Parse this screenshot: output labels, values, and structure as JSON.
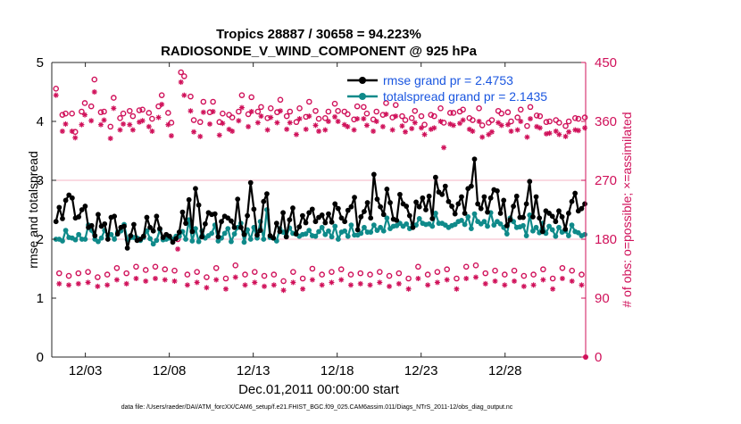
{
  "chart_data": {
    "type": "line",
    "title_line1": "Tropics 28887 / 30658 = 94.223%",
    "title_line2": "RADIOSONDE_V_WIND_COMPONENT @ 925 hPa",
    "xlabel": "Dec.01,2011 00:00:00 start",
    "ylabel_left": "rmse and totalspread",
    "ylabel_right": "# of obs: o=possible; ×=assimilated",
    "footer": "data file: /Users/raeder/DAI/ATM_forcXX/CAM6_setup/f.e21.FHIST_BGC.f09_025.CAM6assim.011/Diags_NTrS_2011-12/obs_diag_output.nc",
    "xlim": [
      1,
      32.8
    ],
    "ylim_left": [
      0,
      5
    ],
    "ylim_right": [
      0,
      450
    ],
    "x_ticks": [
      {
        "label": "12/03",
        "value": 3
      },
      {
        "label": "12/08",
        "value": 8
      },
      {
        "label": "12/13",
        "value": 13
      },
      {
        "label": "12/18",
        "value": 18
      },
      {
        "label": "12/23",
        "value": 23
      },
      {
        "label": "12/28",
        "value": 28
      }
    ],
    "y_ticks_left": [
      "0",
      "1",
      "2",
      "3",
      "4",
      "5"
    ],
    "y_ticks_right": [
      "0",
      "90",
      "180",
      "270",
      "360",
      "450"
    ],
    "legend": [
      {
        "label": "rmse grand pr = 2.4753",
        "color": "#000000"
      },
      {
        "label": "totalspread grand pr = 2.1435",
        "color": "#008b8b"
      }
    ],
    "colors": {
      "rmse": "#000000",
      "totalspread": "#0f8a8a",
      "obs": "#d0115a",
      "axis_right": "#d0115a",
      "legend_text": "#1a56e0",
      "guide_line": "#f4b6c6"
    },
    "series": [
      {
        "name": "rmse",
        "values": [
          2.3,
          2.54,
          2.35,
          2.66,
          2.75,
          2.7,
          2.36,
          2.38,
          2.5,
          2.56,
          2.2,
          2.23,
          2.06,
          2.42,
          2.22,
          2.26,
          2.0,
          2.37,
          2.39,
          2.09,
          2.2,
          2.22,
          1.85,
          2.06,
          2.25,
          1.98,
          2.0,
          2.05,
          2.37,
          2.2,
          2.14,
          2.39,
          2.18,
          2.03,
          2.08,
          2.05,
          1.95,
          2.01,
          2.12,
          2.46,
          2.27,
          2.67,
          2.13,
          2.86,
          2.58,
          2.04,
          2.26,
          2.45,
          2.42,
          2.43,
          2.04,
          2.3,
          2.39,
          2.36,
          2.31,
          2.2,
          2.68,
          2.2,
          2.08,
          2.4,
          2.96,
          2.51,
          2.07,
          2.15,
          2.64,
          2.77,
          2.06,
          2.02,
          2.27,
          2.13,
          2.45,
          2.04,
          2.33,
          2.53,
          2.09,
          2.21,
          2.4,
          2.28,
          2.45,
          2.51,
          2.3,
          2.37,
          2.41,
          2.28,
          2.43,
          2.29,
          2.6,
          2.52,
          2.36,
          2.3,
          2.49,
          2.55,
          2.71,
          2.16,
          2.38,
          2.47,
          2.62,
          2.36,
          3.1,
          2.68,
          2.55,
          2.42,
          2.85,
          2.62,
          2.34,
          2.32,
          2.76,
          2.6,
          2.56,
          2.4,
          2.2,
          2.63,
          2.55,
          2.7,
          2.5,
          2.73,
          2.35,
          3.05,
          2.8,
          2.76,
          2.9,
          2.64,
          2.56,
          2.43,
          2.6,
          2.72,
          2.44,
          2.86,
          2.9,
          3.36,
          2.6,
          2.52,
          2.72,
          2.46,
          2.7,
          2.84,
          2.82,
          2.44,
          2.66,
          2.23,
          2.33,
          2.56,
          2.73,
          2.37,
          2.37,
          2.6,
          2.98,
          2.38,
          2.72,
          2.36,
          2.13,
          2.48,
          2.44,
          2.39,
          2.3,
          2.48,
          2.38,
          2.17,
          2.44,
          2.64,
          2.78,
          2.48,
          2.52,
          2.6
        ]
      },
      {
        "name": "totalspread",
        "values": [
          2.0,
          2.0,
          1.97,
          2.15,
          2.03,
          2.02,
          1.99,
          2.08,
          2.0,
          2.0,
          2.24,
          2.15,
          2.0,
          1.96,
          2.02,
          2.15,
          2.06,
          2.08,
          2.0,
          2.12,
          2.14,
          2.25,
          1.99,
          2.03,
          2.03,
          2.02,
          1.98,
          2.03,
          2.14,
          2.01,
          1.92,
          1.98,
          2.16,
          1.99,
          2.0,
          2.02,
          2.0,
          2.05,
          2.05,
          2.13,
          2.0,
          2.33,
          1.97,
          2.18,
          1.96,
          2.14,
          2.02,
          2.06,
          2.1,
          2.24,
          1.97,
          2.02,
          2.1,
          2.18,
          1.96,
          2.09,
          2.2,
          2.27,
          1.95,
          2.16,
          2.0,
          2.2,
          2.02,
          2.3,
          2.0,
          2.5,
          2.03,
          2.02,
          1.97,
          2.18,
          2.12,
          2.05,
          2.19,
          2.1,
          2.09,
          2.05,
          2.08,
          2.09,
          2.15,
          2.06,
          2.05,
          2.13,
          2.2,
          2.08,
          2.14,
          2.04,
          2.22,
          2.0,
          2.12,
          2.14,
          2.05,
          2.24,
          2.07,
          2.07,
          2.1,
          2.2,
          2.12,
          2.12,
          2.24,
          2.15,
          2.2,
          2.14,
          2.36,
          2.18,
          2.22,
          2.23,
          2.27,
          2.22,
          2.26,
          2.18,
          2.25,
          2.24,
          2.35,
          2.27,
          2.25,
          2.26,
          2.22,
          2.44,
          2.27,
          2.27,
          2.24,
          2.2,
          2.23,
          2.25,
          2.3,
          2.32,
          2.25,
          2.38,
          2.18,
          2.43,
          2.3,
          2.26,
          2.3,
          2.22,
          2.45,
          2.24,
          2.3,
          2.26,
          2.2,
          2.09,
          2.36,
          2.3,
          2.2,
          2.21,
          2.23,
          2.06,
          2.41,
          2.14,
          2.2,
          2.11,
          2.27,
          2.1,
          2.22,
          2.16,
          2.05,
          2.2,
          2.12,
          2.14,
          2.06,
          2.24,
          2.13,
          2.11,
          2.06,
          2.08
        ]
      },
      {
        "name": "obs_possible",
        "values": [
          410,
          128,
          370,
          372,
          124,
          372,
          344,
          128,
          375,
          388,
          130,
          383,
          424,
          122,
          374,
          375,
          126,
          352,
          396,
          136,
          365,
          372,
          128,
          376,
          368,
          138,
          377,
          378,
          133,
          373,
          364,
          138,
          383,
          400,
          134,
          373,
          358,
          132,
          180,
          435,
          429,
          126,
          398,
          362,
          130,
          359,
          390,
          122,
          374,
          390,
          136,
          359,
          372,
          120,
          370,
          366,
          140,
          375,
          400,
          126,
          371,
          397,
          130,
          375,
          382,
          124,
          365,
          380,
          126,
          374,
          393,
          116,
          368,
          375,
          130,
          359,
          380,
          120,
          367,
          390,
          135,
          376,
          364,
          126,
          365,
          375,
          130,
          387,
          376,
          134,
          375,
          371,
          126,
          363,
          383,
          128,
          382,
          372,
          126,
          363,
          375,
          130,
          370,
          388,
          124,
          366,
          385,
          128,
          368,
          362,
          120,
          365,
          376,
          138,
          368,
          355,
          126,
          370,
          368,
          130,
          380,
          358,
          134,
          373,
          373,
          120,
          375,
          378,
          138,
          365,
          362,
          140,
          380,
          354,
          128,
          358,
          362,
          132,
          376,
          372,
          126,
          374,
          360,
          132,
          366,
          378,
          124,
          353,
          382,
          126,
          369,
          368,
          134,
          359,
          360,
          120,
          362,
          358,
          136,
          353,
          360,
          132,
          365,
          364,
          126,
          366
        ]
      },
      {
        "name": "obs_assimilated",
        "values": [
          400,
          112,
          345,
          356,
          110,
          345,
          335,
          112,
          355,
          370,
          114,
          361,
          405,
          108,
          355,
          362,
          110,
          334,
          380,
          118,
          347,
          356,
          112,
          355,
          347,
          120,
          359,
          361,
          116,
          352,
          345,
          120,
          366,
          386,
          118,
          355,
          338,
          116,
          165,
          420,
          400,
          110,
          376,
          344,
          114,
          337,
          374,
          106,
          356,
          375,
          118,
          339,
          357,
          104,
          348,
          345,
          122,
          361,
          381,
          110,
          352,
          375,
          114,
          358,
          368,
          108,
          347,
          366,
          110,
          358,
          376,
          102,
          348,
          358,
          114,
          340,
          364,
          104,
          348,
          368,
          118,
          354,
          345,
          110,
          347,
          360,
          114,
          367,
          360,
          118,
          355,
          352,
          110,
          347,
          364,
          112,
          364,
          354,
          110,
          345,
          360,
          114,
          352,
          371,
          108,
          347,
          368,
          112,
          353,
          344,
          104,
          349,
          358,
          120,
          350,
          340,
          110,
          348,
          350,
          114,
          360,
          320,
          118,
          356,
          354,
          104,
          357,
          362,
          120,
          348,
          345,
          122,
          360,
          336,
          112,
          340,
          344,
          116,
          358,
          354,
          110,
          355,
          345,
          116,
          347,
          360,
          108,
          336,
          364,
          110,
          352,
          350,
          118,
          341,
          342,
          104,
          345,
          340,
          120,
          337,
          344,
          116,
          347,
          346,
          110,
          350
        ]
      }
    ]
  }
}
